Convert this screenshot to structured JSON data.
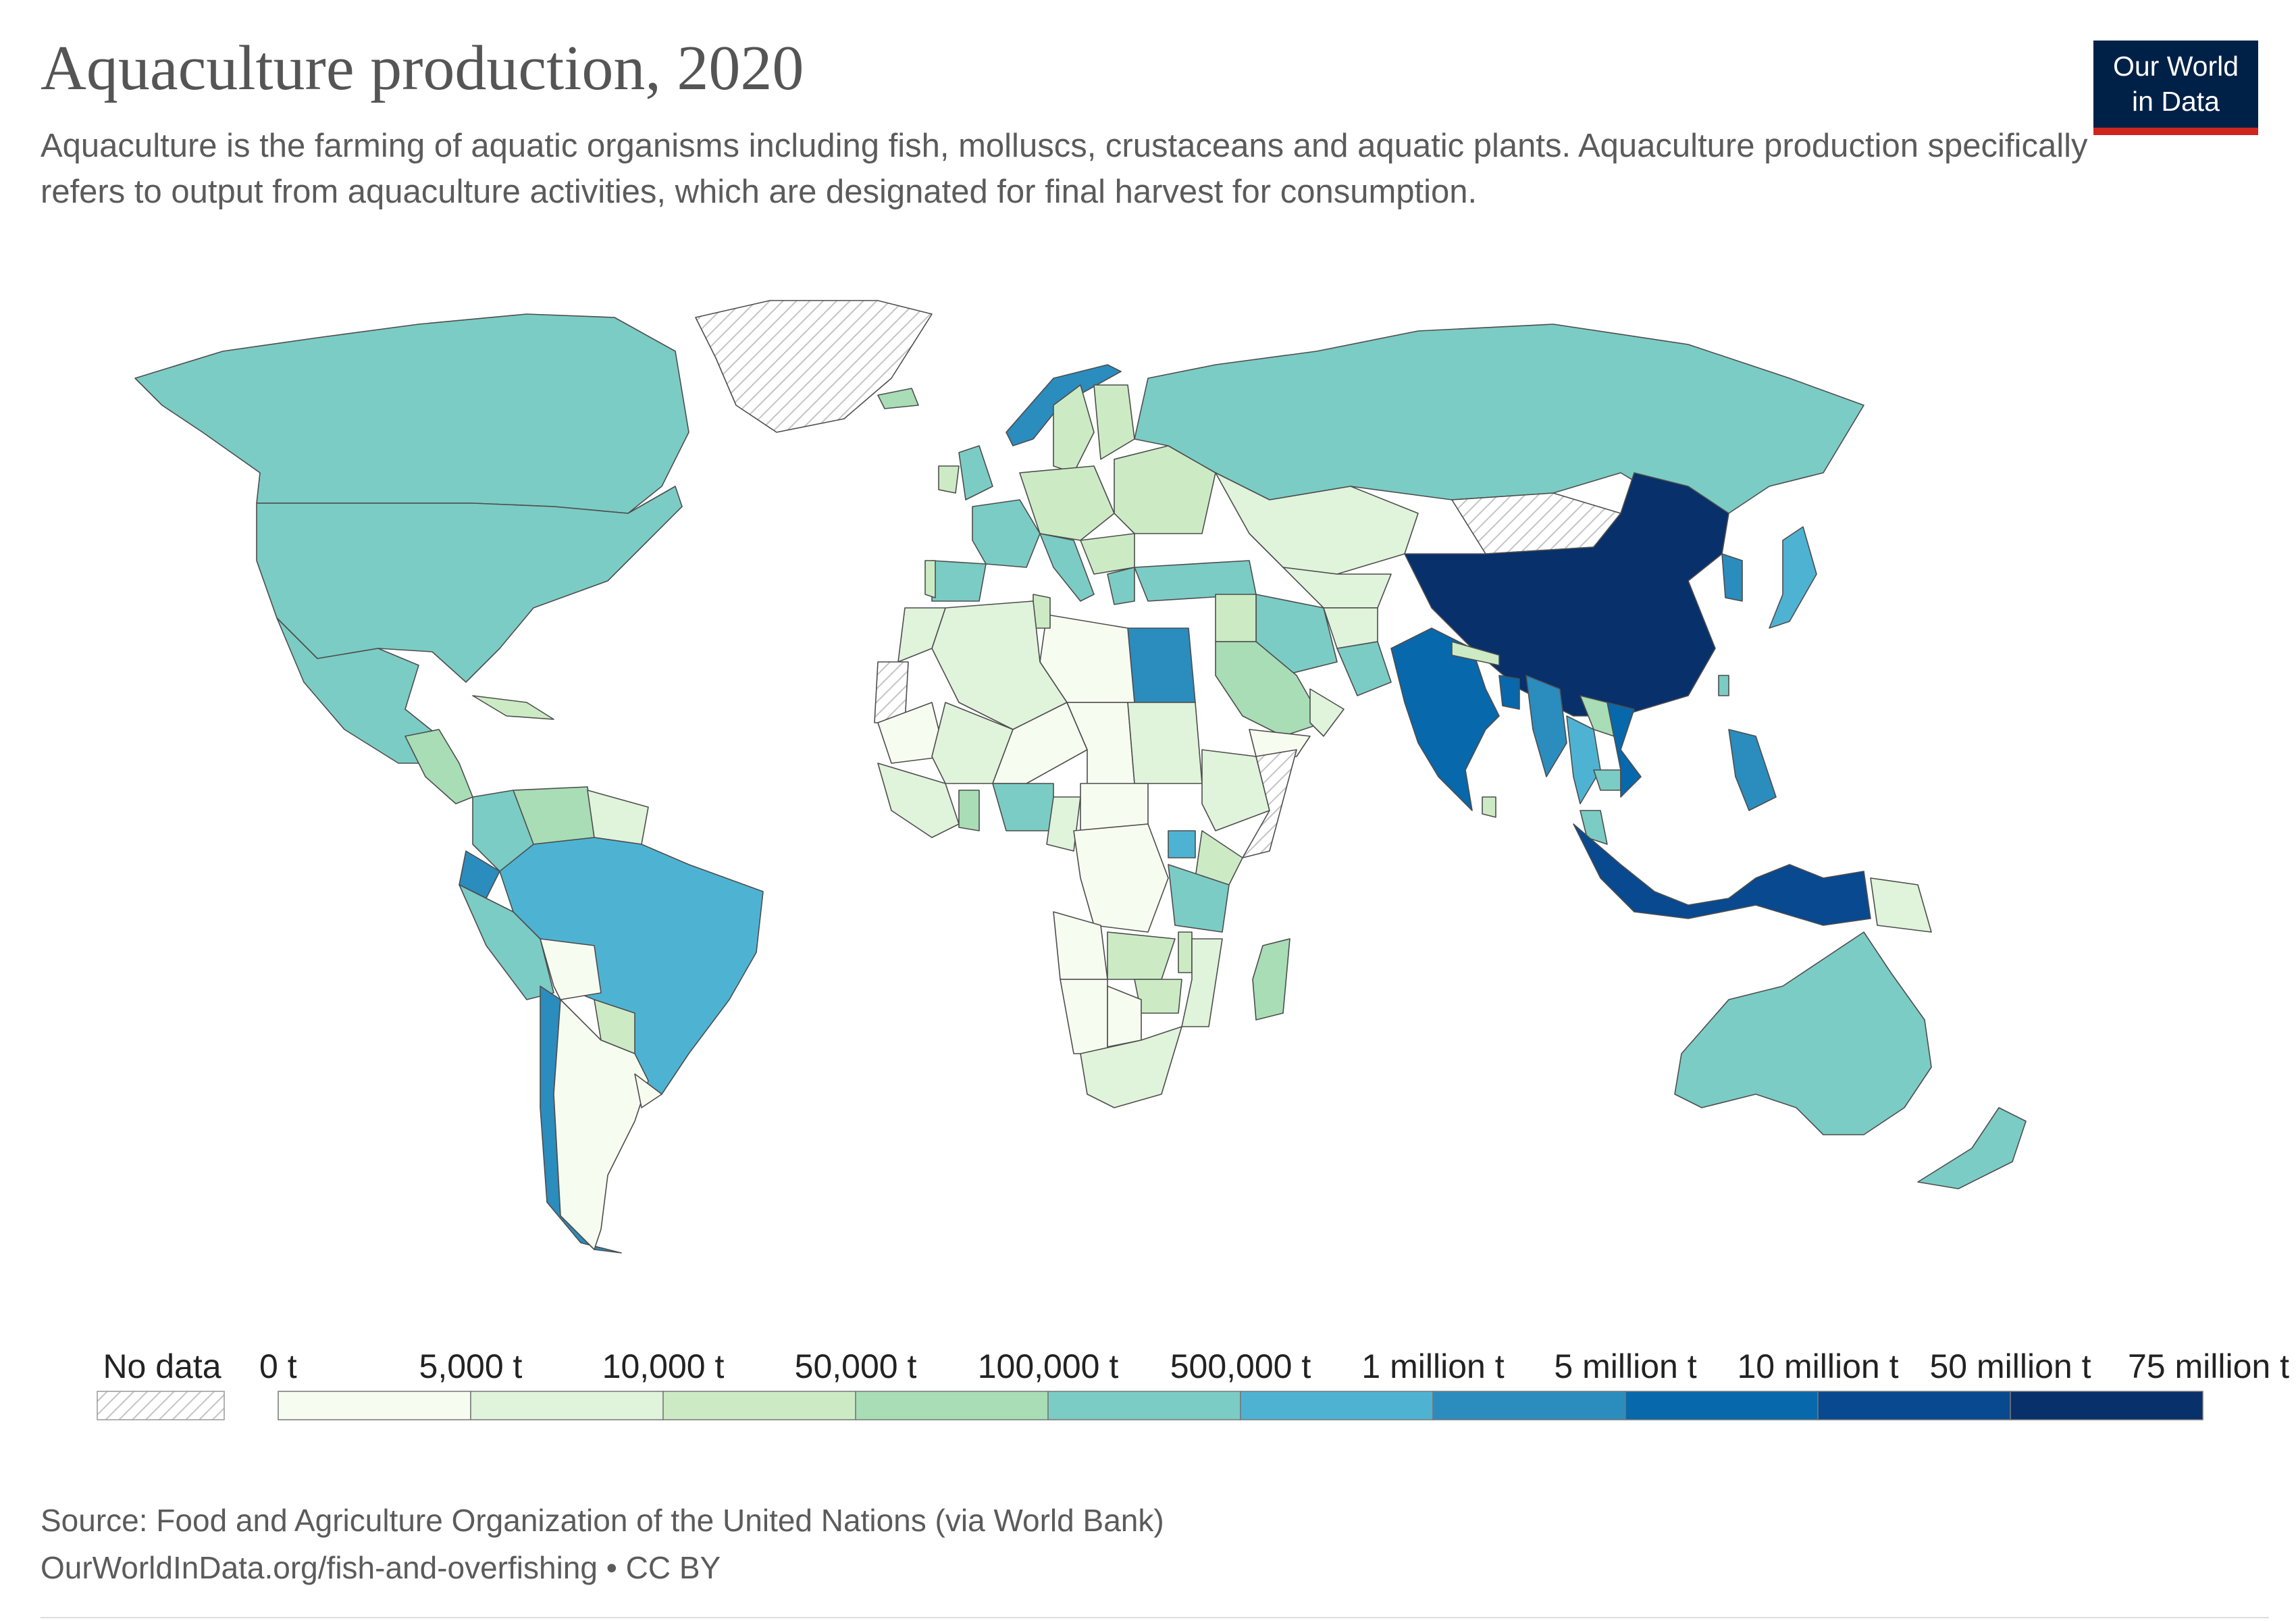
{
  "header": {
    "title": "Aquaculture production, 2020",
    "subtitle": "Aquaculture is the farming of aquatic organisms including fish, molluscs, crustaceans and aquatic plants. Aquaculture production specifically refers to output from aquaculture activities, which are designated for final harvest for consumption."
  },
  "logo": {
    "line1": "Our World",
    "line2": "in Data",
    "bg": "#002147",
    "accent": "#ce261e"
  },
  "legend": {
    "no_data_label": "No data",
    "labels": [
      "0 t",
      "5,000 t",
      "10,000 t",
      "50,000 t",
      "100,000 t",
      "500,000 t",
      "1 million t",
      "5 million t",
      "10 million t",
      "50 million t",
      "75 million t"
    ],
    "colors": [
      "#f7fcf0",
      "#e0f3db",
      "#ccebc5",
      "#a8ddb5",
      "#7bccc4",
      "#4eb3d3",
      "#2b8cbe",
      "#0868ac",
      "#084990",
      "#08306b"
    ]
  },
  "footer": {
    "source": "Source: Food and Agriculture Organization of the United Nations (via World Bank)",
    "url": "OurWorldInData.org/fish-and-overfishing • CC BY"
  },
  "map": {
    "regions": [
      {
        "name": "Greenland",
        "bin": -1
      },
      {
        "name": "Canada",
        "bin": 4
      },
      {
        "name": "United States",
        "bin": 4
      },
      {
        "name": "Mexico",
        "bin": 4
      },
      {
        "name": "Central America",
        "bin": 3
      },
      {
        "name": "Cuba",
        "bin": 2
      },
      {
        "name": "Colombia",
        "bin": 4
      },
      {
        "name": "Venezuela",
        "bin": 3
      },
      {
        "name": "Guianas",
        "bin": 1
      },
      {
        "name": "Ecuador",
        "bin": 6
      },
      {
        "name": "Peru",
        "bin": 4
      },
      {
        "name": "Brazil",
        "bin": 5
      },
      {
        "name": "Bolivia",
        "bin": 0
      },
      {
        "name": "Paraguay",
        "bin": 2
      },
      {
        "name": "Chile",
        "bin": 6
      },
      {
        "name": "Argentina",
        "bin": 0
      },
      {
        "name": "Uruguay",
        "bin": 0
      },
      {
        "name": "Iceland",
        "bin": 3
      },
      {
        "name": "Norway",
        "bin": 6
      },
      {
        "name": "Sweden",
        "bin": 2
      },
      {
        "name": "Finland",
        "bin": 2
      },
      {
        "name": "United Kingdom",
        "bin": 4
      },
      {
        "name": "Ireland",
        "bin": 2
      },
      {
        "name": "France",
        "bin": 4
      },
      {
        "name": "Spain",
        "bin": 4
      },
      {
        "name": "Portugal",
        "bin": 2
      },
      {
        "name": "Central Europe",
        "bin": 2
      },
      {
        "name": "Italy",
        "bin": 4
      },
      {
        "name": "Balkans",
        "bin": 2
      },
      {
        "name": "Greece",
        "bin": 4
      },
      {
        "name": "Eastern Europe",
        "bin": 2
      },
      {
        "name": "Turkey",
        "bin": 4
      },
      {
        "name": "Russia",
        "bin": 4
      },
      {
        "name": "Kazakhstan",
        "bin": 1
      },
      {
        "name": "Mongolia",
        "bin": -1
      },
      {
        "name": "Central Asia",
        "bin": 1
      },
      {
        "name": "Iran",
        "bin": 4
      },
      {
        "name": "Afghanistan",
        "bin": 1
      },
      {
        "name": "Pakistan",
        "bin": 4
      },
      {
        "name": "India",
        "bin": 7
      },
      {
        "name": "Nepal",
        "bin": 2
      },
      {
        "name": "Bangladesh",
        "bin": 7
      },
      {
        "name": "Sri Lanka",
        "bin": 2
      },
      {
        "name": "China",
        "bin": 9
      },
      {
        "name": "Korea",
        "bin": 6
      },
      {
        "name": "Japan",
        "bin": 5
      },
      {
        "name": "Taiwan",
        "bin": 4
      },
      {
        "name": "Myanmar",
        "bin": 6
      },
      {
        "name": "Thailand",
        "bin": 5
      },
      {
        "name": "Laos",
        "bin": 3
      },
      {
        "name": "Cambodia",
        "bin": 4
      },
      {
        "name": "Vietnam",
        "bin": 7
      },
      {
        "name": "Malaysia",
        "bin": 4
      },
      {
        "name": "Philippines",
        "bin": 6
      },
      {
        "name": "Indonesia",
        "bin": 8
      },
      {
        "name": "Papua New Guinea",
        "bin": 1
      },
      {
        "name": "Australia",
        "bin": 4
      },
      {
        "name": "New Zealand",
        "bin": 4
      },
      {
        "name": "Saudi Arabia",
        "bin": 3
      },
      {
        "name": "Oman",
        "bin": 1
      },
      {
        "name": "Yemen",
        "bin": 0
      },
      {
        "name": "Iraq",
        "bin": 2
      },
      {
        "name": "Egypt",
        "bin": 6
      },
      {
        "name": "Libya",
        "bin": 0
      },
      {
        "name": "Algeria",
        "bin": 1
      },
      {
        "name": "Tunisia",
        "bin": 2
      },
      {
        "name": "Morocco",
        "bin": 1
      },
      {
        "name": "Western Sahara",
        "bin": -1
      },
      {
        "name": "Mauritania",
        "bin": 0
      },
      {
        "name": "Mali",
        "bin": 1
      },
      {
        "name": "Niger",
        "bin": 0
      },
      {
        "name": "Chad",
        "bin": 0
      },
      {
        "name": "Sudan",
        "bin": 1
      },
      {
        "name": "Ethiopia",
        "bin": 1
      },
      {
        "name": "Somalia",
        "bin": -1
      },
      {
        "name": "West Africa coast",
        "bin": 1
      },
      {
        "name": "Ghana",
        "bin": 3
      },
      {
        "name": "Nigeria",
        "bin": 4
      },
      {
        "name": "Cameroon",
        "bin": 1
      },
      {
        "name": "Central African Republic",
        "bin": 0
      },
      {
        "name": "DR Congo",
        "bin": 0
      },
      {
        "name": "Uganda",
        "bin": 5
      },
      {
        "name": "Kenya",
        "bin": 2
      },
      {
        "name": "Tanzania",
        "bin": 4
      },
      {
        "name": "Angola",
        "bin": 0
      },
      {
        "name": "Zambia",
        "bin": 2
      },
      {
        "name": "Malawi",
        "bin": 2
      },
      {
        "name": "Mozambique",
        "bin": 1
      },
      {
        "name": "Zimbabwe",
        "bin": 2
      },
      {
        "name": "Namibia",
        "bin": 0
      },
      {
        "name": "Botswana",
        "bin": 0
      },
      {
        "name": "South Africa",
        "bin": 1
      },
      {
        "name": "Madagascar",
        "bin": 3
      }
    ]
  }
}
